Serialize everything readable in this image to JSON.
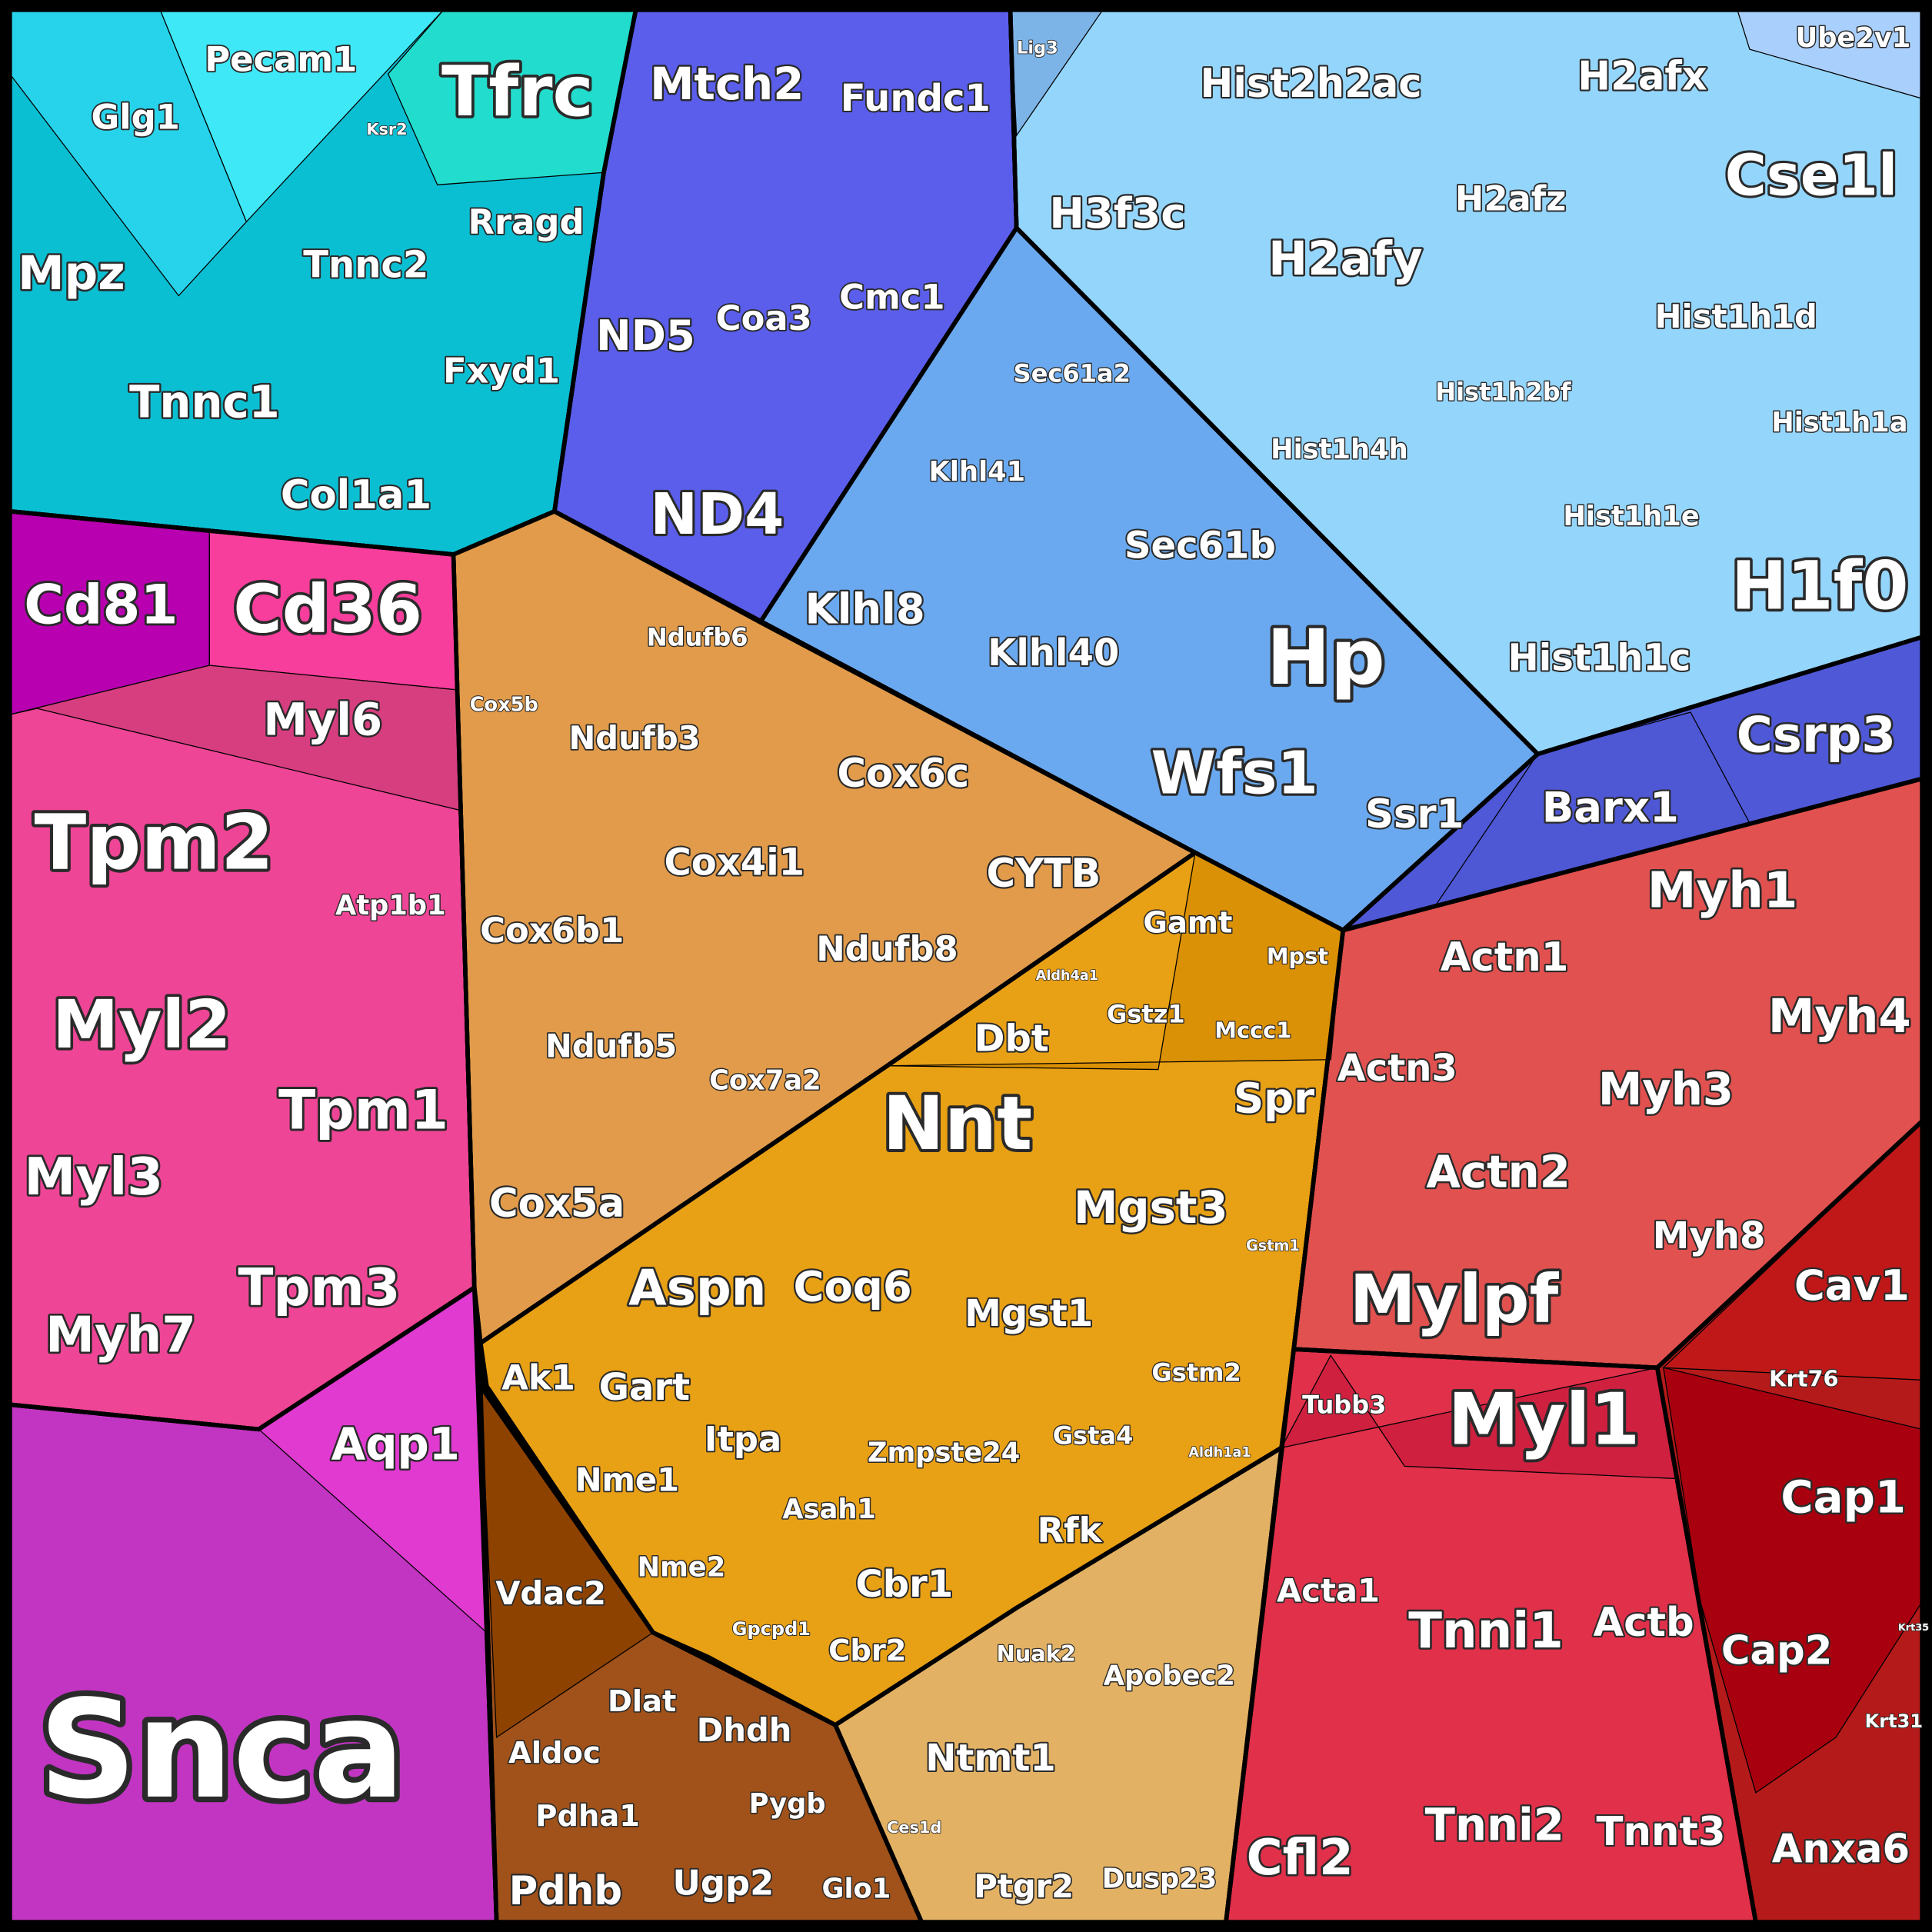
{
  "groups": [
    {
      "id": "cyan",
      "color": "#0bbfd3"
    },
    {
      "id": "indigo",
      "color": "#5a5eea"
    },
    {
      "id": "lightblue",
      "color": "#94d5fb"
    },
    {
      "id": "midblue",
      "color": "#6aa9ef"
    },
    {
      "id": "darkblue",
      "color": "#4f58d6"
    },
    {
      "id": "pink",
      "color": "#ef4596"
    },
    {
      "id": "purple",
      "color": "#c235c2"
    },
    {
      "id": "orange",
      "color": "#e19b4a"
    },
    {
      "id": "golden",
      "color": "#e8a014"
    },
    {
      "id": "brown",
      "color": "#a0521a"
    },
    {
      "id": "tan",
      "color": "#e2b163"
    },
    {
      "id": "red",
      "color": "#e0514f"
    },
    {
      "id": "crimson",
      "color": "#e0304a"
    },
    {
      "id": "darkred",
      "color": "#b51a1a"
    }
  ],
  "cells": [
    {
      "label": "Mpz"
    },
    {
      "label": "Glg1"
    },
    {
      "label": "Pecam1"
    },
    {
      "label": "Tfrc"
    },
    {
      "label": "Ksr2"
    },
    {
      "label": "Rragd"
    },
    {
      "label": "Tnnc2"
    },
    {
      "label": "Tnnc1"
    },
    {
      "label": "Fxyd1"
    },
    {
      "label": "Col1a1"
    },
    {
      "label": "Mtch2"
    },
    {
      "label": "Fundc1"
    },
    {
      "label": "ND5"
    },
    {
      "label": "Coa3"
    },
    {
      "label": "Cmc1"
    },
    {
      "label": "ND4"
    },
    {
      "label": "Lig3"
    },
    {
      "label": "Hist2h2ac"
    },
    {
      "label": "H2afx"
    },
    {
      "label": "Ube2v1"
    },
    {
      "label": "H3f3c"
    },
    {
      "label": "H2afy"
    },
    {
      "label": "H2afz"
    },
    {
      "label": "Cse1l"
    },
    {
      "label": "Hist1h1d"
    },
    {
      "label": "Hist1h2bf"
    },
    {
      "label": "Hist1h4h"
    },
    {
      "label": "Hist1h1a"
    },
    {
      "label": "Hist1h1e"
    },
    {
      "label": "H1f0"
    },
    {
      "label": "Hist1h1c"
    },
    {
      "label": "Sec61a2"
    },
    {
      "label": "Klhl41"
    },
    {
      "label": "Sec61b"
    },
    {
      "label": "Klhl8"
    },
    {
      "label": "Klhl40"
    },
    {
      "label": "Hp"
    },
    {
      "label": "Wfs1"
    },
    {
      "label": "Ssr1"
    },
    {
      "label": "Barx1"
    },
    {
      "label": "Csrp3"
    },
    {
      "label": "Cd81"
    },
    {
      "label": "Cd36"
    },
    {
      "label": "Myl6"
    },
    {
      "label": "Tpm2"
    },
    {
      "label": "Atp1b1"
    },
    {
      "label": "Myl2"
    },
    {
      "label": "Tpm1"
    },
    {
      "label": "Myl3"
    },
    {
      "label": "Tpm3"
    },
    {
      "label": "Myh7"
    },
    {
      "label": "Snca"
    },
    {
      "label": "Aqp1"
    },
    {
      "label": "Ndufb6"
    },
    {
      "label": "Cox5b"
    },
    {
      "label": "Ndufb3"
    },
    {
      "label": "Cox6c"
    },
    {
      "label": "Cox4i1"
    },
    {
      "label": "CYTB"
    },
    {
      "label": "Cox6b1"
    },
    {
      "label": "Ndufb8"
    },
    {
      "label": "Ndufb5"
    },
    {
      "label": "Cox7a2"
    },
    {
      "label": "Cox5a"
    },
    {
      "label": "Gamt"
    },
    {
      "label": "Mpst"
    },
    {
      "label": "Aldh4a1"
    },
    {
      "label": "Gstz1"
    },
    {
      "label": "Mccc1"
    },
    {
      "label": "Dbt"
    },
    {
      "label": "Nnt"
    },
    {
      "label": "Spr"
    },
    {
      "label": "Mgst3"
    },
    {
      "label": "Gstm1"
    },
    {
      "label": "Aspn"
    },
    {
      "label": "Coq6"
    },
    {
      "label": "Mgst1"
    },
    {
      "label": "Gstm2"
    },
    {
      "label": "Ak1"
    },
    {
      "label": "Gart"
    },
    {
      "label": "Itpa"
    },
    {
      "label": "Zmpste24"
    },
    {
      "label": "Gsta4"
    },
    {
      "label": "Aldh1a1"
    },
    {
      "label": "Nme1"
    },
    {
      "label": "Asah1"
    },
    {
      "label": "Rfk"
    },
    {
      "label": "Cbr1"
    },
    {
      "label": "Nme2"
    },
    {
      "label": "Gpcpd1"
    },
    {
      "label": "Cbr2"
    },
    {
      "label": "Vdac2"
    },
    {
      "label": "Dlat"
    },
    {
      "label": "Aldoc"
    },
    {
      "label": "Dhdh"
    },
    {
      "label": "Pdha1"
    },
    {
      "label": "Pygb"
    },
    {
      "label": "Pdhb"
    },
    {
      "label": "Ugp2"
    },
    {
      "label": "Glo1"
    },
    {
      "label": "Nuak2"
    },
    {
      "label": "Apobec2"
    },
    {
      "label": "Ntmt1"
    },
    {
      "label": "Ces1d"
    },
    {
      "label": "Ptgr2"
    },
    {
      "label": "Dusp23"
    },
    {
      "label": "Myh1"
    },
    {
      "label": "Actn1"
    },
    {
      "label": "Myh4"
    },
    {
      "label": "Actn3"
    },
    {
      "label": "Myh3"
    },
    {
      "label": "Actn2"
    },
    {
      "label": "Myh8"
    },
    {
      "label": "Mylpf"
    },
    {
      "label": "Tubb3"
    },
    {
      "label": "Myl1"
    },
    {
      "label": "Acta1"
    },
    {
      "label": "Tnni1"
    },
    {
      "label": "Actb"
    },
    {
      "label": "Tnni2"
    },
    {
      "label": "Tnnt3"
    },
    {
      "label": "Cfl2"
    },
    {
      "label": "Cav1"
    },
    {
      "label": "Krt76"
    },
    {
      "label": "Cap1"
    },
    {
      "label": "Cap2"
    },
    {
      "label": "Krt35"
    },
    {
      "label": "Krt31"
    },
    {
      "label": "Anxa6"
    }
  ]
}
